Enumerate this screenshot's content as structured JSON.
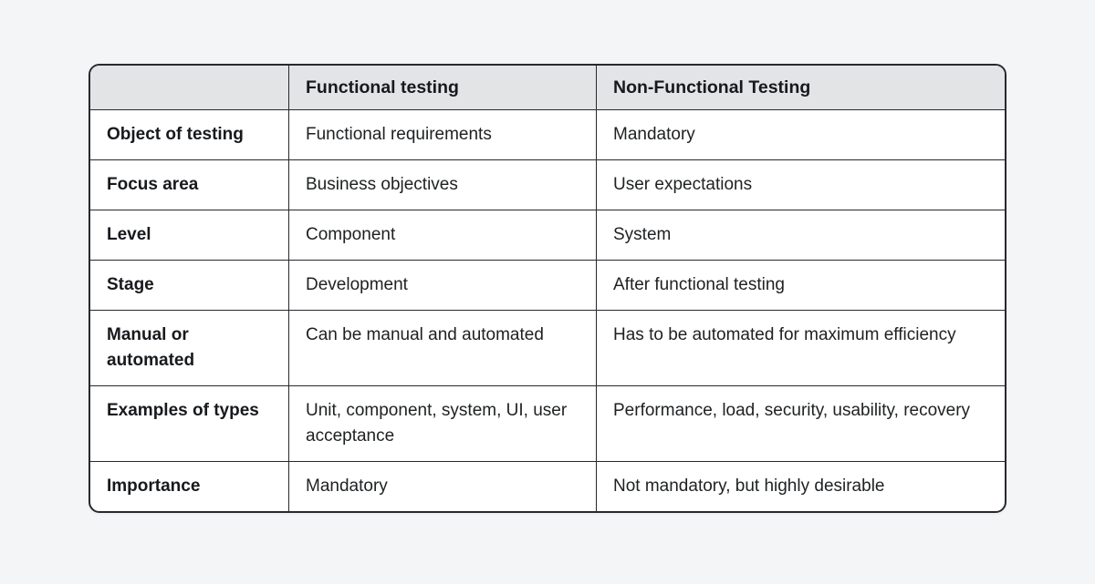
{
  "style": {
    "page_background": "#f3f5f7",
    "header_background": "#e2e4e6",
    "cell_background": "#ffffff",
    "border_color": "#27292d",
    "text_color": "#1e2022"
  },
  "chart_data": {
    "type": "table",
    "title": "",
    "columns": [
      "",
      "Functional testing",
      "Non-Functional Testing"
    ],
    "rows": [
      [
        "Object of testing",
        "Functional requirements",
        "Mandatory"
      ],
      [
        "Focus area",
        "Business objectives",
        "User expectations"
      ],
      [
        "Level",
        "Component",
        "System"
      ],
      [
        "Stage",
        "Development",
        "After functional testing"
      ],
      [
        "Manual or automated",
        "Can be manual and automated",
        "Has to be automated for maximum efficiency"
      ],
      [
        "Examples of types",
        "Unit, component, system, UI, user acceptance",
        "Performance, load, security, usability, recovery"
      ],
      [
        "Importance",
        "Mandatory",
        "Not mandatory, but highly desirable"
      ]
    ],
    "layout": {
      "grid": true,
      "header_row_shaded": true,
      "first_column_bold": true,
      "rounded_corners": true
    }
  }
}
